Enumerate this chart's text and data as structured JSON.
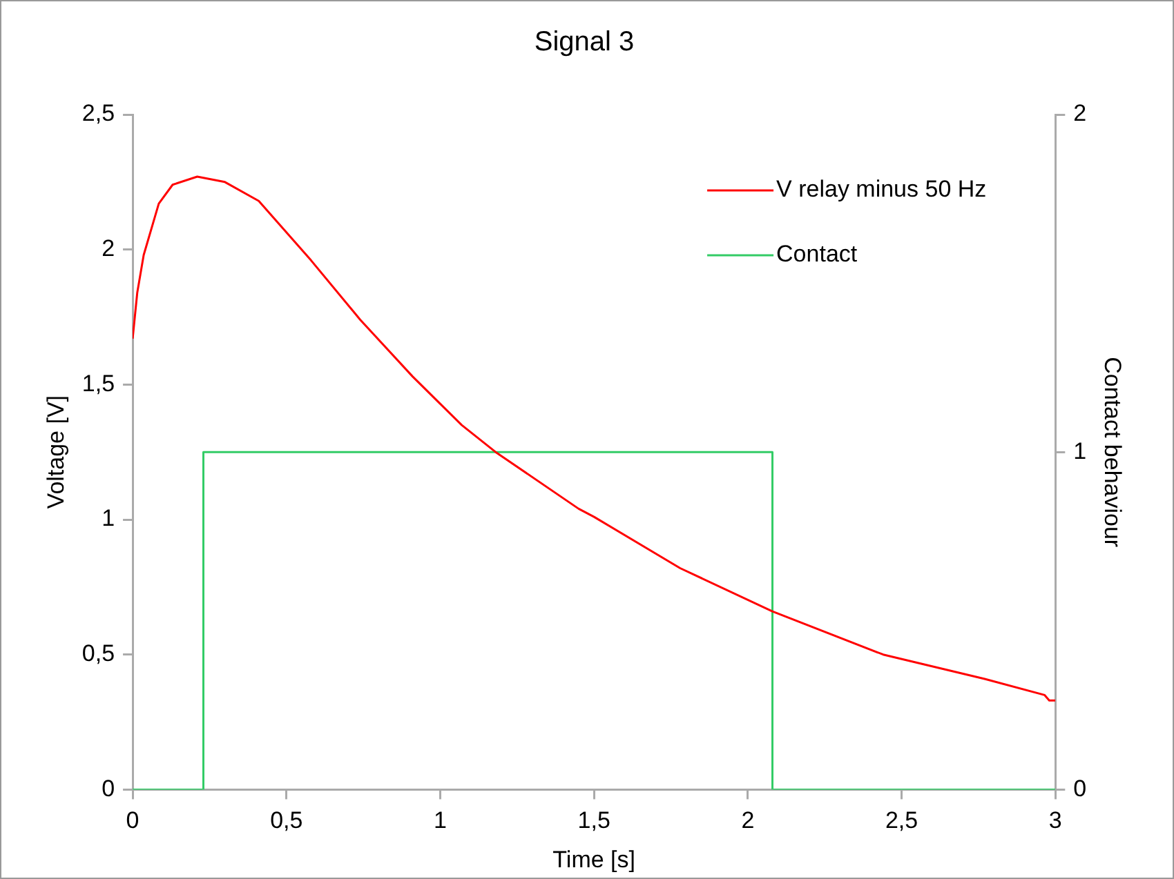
{
  "chart_data": {
    "type": "line",
    "title": "Signal 3",
    "xlabel": "Time [s]",
    "ylabel": "Voltage [V]",
    "y2label": "Contact behaviour",
    "xlim": [
      0,
      3
    ],
    "xticks": [
      0,
      {
        "value": 0.5,
        "label": "0,5"
      },
      1,
      {
        "value": 1.5,
        "label": "1,5"
      },
      2,
      {
        "value": 2.5,
        "label": "2,5"
      },
      3
    ],
    "ylim": [
      0,
      2.5
    ],
    "yticks": [
      0,
      {
        "value": 0.5,
        "label": "0,5"
      },
      1,
      {
        "value": 1.5,
        "label": "1,5"
      },
      2,
      {
        "value": 2.5,
        "label": "2,5"
      }
    ],
    "y2lim": [
      0,
      2
    ],
    "y2ticks": [
      0,
      1,
      2
    ],
    "grid": false,
    "legend": "top right",
    "marker": "none",
    "line_style": "solid",
    "series": [
      {
        "name": "V relay minus 50 Hz",
        "color": "#ff0000",
        "type": "line",
        "x": [
          0,
          0.015,
          0.036,
          0.085,
          0.13,
          0.21,
          0.3,
          0.41,
          0.58,
          0.74,
          0.91,
          1.07,
          1.18,
          1.45,
          1.5,
          1.78,
          2.08,
          2.44,
          2.77,
          2.965,
          2.98,
          3
        ],
        "values": [
          1.67,
          1.84,
          1.98,
          2.17,
          2.24,
          2.27,
          2.25,
          2.18,
          1.96,
          1.74,
          1.53,
          1.35,
          1.25,
          1.04,
          1.01,
          0.82,
          0.66,
          0.5,
          0.41,
          0.35,
          0.33,
          0.33
        ]
      },
      {
        "name": "Contact",
        "color": "#33cc66",
        "type": "step",
        "axis": "y2",
        "x": [
          0,
          0.23,
          2.08,
          3
        ],
        "values": [
          0,
          1,
          0,
          0
        ]
      }
    ]
  }
}
